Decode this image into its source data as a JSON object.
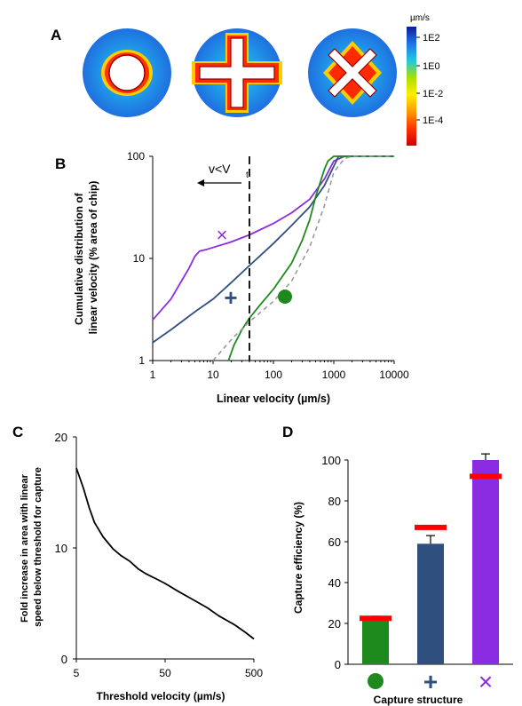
{
  "colors": {
    "cross": "#8b2be2",
    "plus": "#2f4f7f",
    "circle": "#1e8a1e",
    "dashed": "#9a9a9a",
    "predicted": "#ff0000",
    "cmap": [
      "#cc0000",
      "#ff3300",
      "#ff9900",
      "#ffee00",
      "#a8e000",
      "#1fc9e0",
      "#1f75e8",
      "#0a1e9a"
    ]
  },
  "panels": {
    "a": {
      "label": "A",
      "colorbar": {
        "unit": "µm/s",
        "ticks": [
          "1E2",
          "1E0",
          "1E-2",
          "1E-4"
        ]
      },
      "structures": [
        "circle",
        "plus",
        "cross"
      ]
    },
    "b": {
      "label": "B",
      "threshold_label": "v<V",
      "threshold_sub": "t"
    },
    "c": {
      "label": "C"
    },
    "d": {
      "label": "D"
    }
  },
  "chart_data": [
    {
      "panel": "B",
      "type": "line",
      "xlabel": "Linear velocity (µm/s)",
      "ylabel": "Cumulative distribution of linear velocity (% area of chip)",
      "xscale": "log",
      "yscale": "log",
      "xlim": [
        1,
        10000
      ],
      "ylim": [
        1,
        100
      ],
      "xticks": [
        "1",
        "10",
        "100",
        "1000",
        "10000"
      ],
      "yticks": [
        "1",
        "10",
        "100"
      ],
      "threshold_x": 40,
      "series": [
        {
          "key": "cross",
          "marker": "×",
          "x": [
            1,
            2,
            3,
            4,
            5,
            6,
            8,
            10,
            20,
            40,
            100,
            200,
            400,
            700,
            1000,
            1500,
            10000
          ],
          "y": [
            2.5,
            4,
            6,
            8,
            10.5,
            11.8,
            12.3,
            12.8,
            14.5,
            17,
            22,
            28,
            38,
            60,
            90,
            100,
            100
          ]
        },
        {
          "key": "plus",
          "marker": "+",
          "x": [
            1,
            2,
            5,
            10,
            20,
            40,
            100,
            200,
            400,
            700,
            1000,
            1200,
            10000
          ],
          "y": [
            1.5,
            2,
            3,
            4,
            5.8,
            8.5,
            14,
            21,
            32,
            52,
            80,
            100,
            100
          ]
        },
        {
          "key": "circle",
          "marker": "●",
          "x": [
            18,
            22,
            30,
            40,
            60,
            100,
            200,
            300,
            400,
            500,
            700,
            800,
            1000,
            1200,
            10000
          ],
          "y": [
            1,
            1.4,
            2,
            2.6,
            3.5,
            5,
            9,
            15,
            24,
            40,
            75,
            90,
            100,
            100,
            100
          ]
        },
        {
          "key": "dashed",
          "marker": "",
          "x": [
            10,
            20,
            40,
            100,
            200,
            400,
            700,
            1000,
            1500,
            2000,
            10000
          ],
          "y": [
            1,
            1.6,
            2.4,
            3.8,
            6,
            13,
            33,
            70,
            95,
            100,
            100
          ]
        }
      ]
    },
    {
      "panel": "C",
      "type": "line",
      "xlabel": "Threshold velocity (µm/s)",
      "ylabel": "Fold increase in area with linear speed below threshold for capture",
      "xscale": "log",
      "xlim": [
        5,
        500
      ],
      "ylim": [
        0,
        20
      ],
      "xticks": [
        "5",
        "50",
        "500"
      ],
      "yticks": [
        "0",
        "10",
        "20"
      ],
      "x": [
        5,
        6,
        7,
        8,
        10,
        13,
        16,
        20,
        25,
        30,
        40,
        50,
        70,
        100,
        150,
        200,
        300,
        400,
        500
      ],
      "y": [
        17.2,
        15.4,
        13.6,
        12.3,
        11,
        9.9,
        9.3,
        8.8,
        8.1,
        7.7,
        7.2,
        6.8,
        6.1,
        5.4,
        4.6,
        3.9,
        3.1,
        2.4,
        1.8
      ]
    },
    {
      "panel": "D",
      "type": "bar",
      "xlabel": "Capture structure",
      "ylabel": "Capture efficiency (%)",
      "ylim": [
        0,
        100
      ],
      "yticks": [
        "0",
        "20",
        "40",
        "60",
        "80",
        "100"
      ],
      "categories": [
        "●",
        "+",
        "×"
      ],
      "values": [
        22,
        59,
        100
      ],
      "errors": [
        1.5,
        4,
        3
      ],
      "predicted": [
        22.5,
        67,
        92
      ]
    }
  ]
}
